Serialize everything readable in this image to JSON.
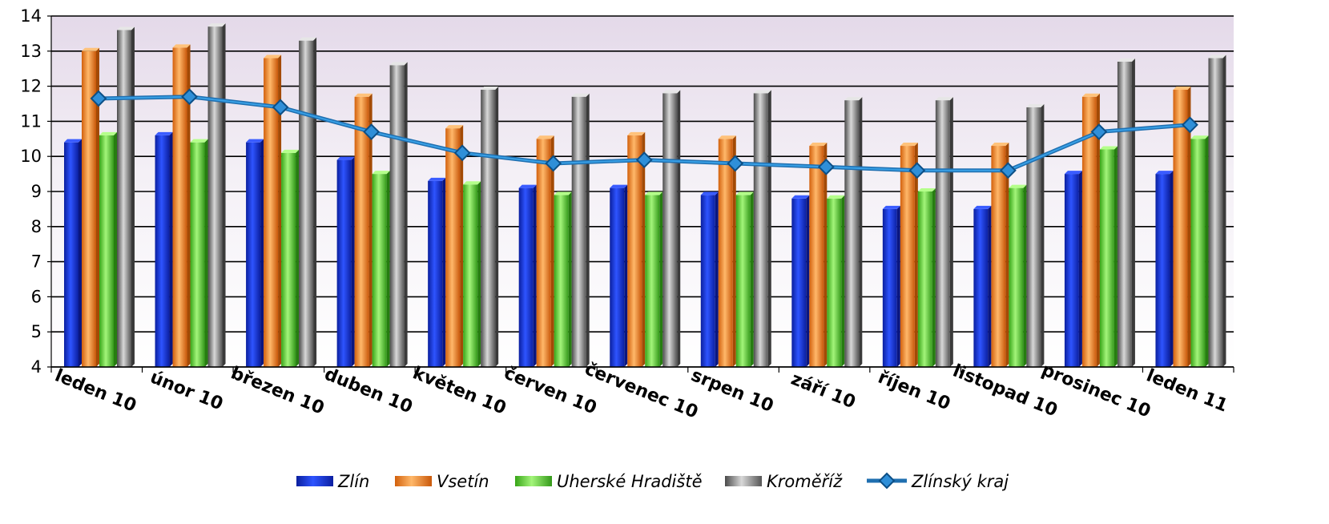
{
  "chart_data": {
    "type": "bar",
    "categories": [
      "leden 10",
      "únor 10",
      "březen 10",
      "duben 10",
      "květen 10",
      "červen 10",
      "červenec 10",
      "srpen 10",
      "září 10",
      "říjen 10",
      "listopad 10",
      "prosinec 10",
      "leden 11"
    ],
    "series": [
      {
        "name": "Zlín",
        "type": "bar",
        "color": "#1f3fd6",
        "values": [
          10.4,
          10.6,
          10.4,
          9.9,
          9.3,
          9.1,
          9.1,
          8.9,
          8.8,
          8.5,
          8.5,
          9.5,
          9.5
        ]
      },
      {
        "name": "Vsetín",
        "type": "bar",
        "color": "#f08a2a",
        "values": [
          13.0,
          13.1,
          12.8,
          11.7,
          10.8,
          10.5,
          10.6,
          10.5,
          10.3,
          10.3,
          10.3,
          11.7,
          11.9
        ]
      },
      {
        "name": "Uherské Hradiště",
        "type": "bar",
        "color": "#5fd63a",
        "values": [
          10.6,
          10.4,
          10.1,
          9.5,
          9.2,
          8.9,
          8.9,
          8.9,
          8.8,
          9.0,
          9.1,
          10.2,
          10.5
        ]
      },
      {
        "name": "Kroměříž",
        "type": "bar",
        "color": "#8c8c8c",
        "values": [
          13.6,
          13.7,
          13.3,
          12.6,
          11.9,
          11.7,
          11.8,
          11.8,
          11.6,
          11.6,
          11.4,
          12.7,
          12.8
        ]
      },
      {
        "name": "Zlínský kraj",
        "type": "line",
        "color": "#1f7fc4",
        "values": [
          11.65,
          11.7,
          11.4,
          10.7,
          10.1,
          9.8,
          9.9,
          9.8,
          9.7,
          9.6,
          9.6,
          10.7,
          10.9
        ]
      }
    ],
    "ylim": [
      4,
      14
    ],
    "yticks": [
      4,
      5,
      6,
      7,
      8,
      9,
      10,
      11,
      12,
      13,
      14
    ],
    "grid": true,
    "legend": "bottom"
  }
}
